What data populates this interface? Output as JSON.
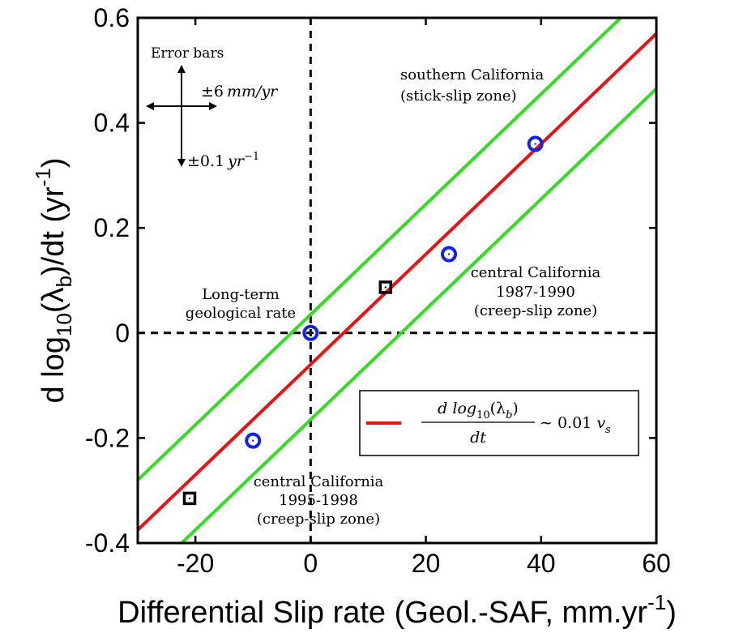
{
  "chart_data": {
    "type": "scatter",
    "xlabel_main": "Differential Slip rate (Geol.-SAF, mm.yr",
    "xlabel_sup": "-1",
    "xlabel_end": ")",
    "ylabel_parts": {
      "a": "d log",
      "sub1": "10",
      "b": "(λ",
      "sub2": "b",
      "c": ")/dt   (yr",
      "sup": "-1",
      "d": ")"
    },
    "xlim": [
      -30,
      60
    ],
    "ylim": [
      -0.4,
      0.6
    ],
    "x_ticks": [
      {
        "value": -20,
        "label": "-20"
      },
      {
        "value": 0,
        "label": "0"
      },
      {
        "value": 20,
        "label": "20"
      },
      {
        "value": 40,
        "label": "40"
      },
      {
        "value": 60,
        "label": "60"
      }
    ],
    "y_ticks": [
      {
        "value": -0.4,
        "label": "-0.4"
      },
      {
        "value": -0.2,
        "label": "-0.2"
      },
      {
        "value": 0,
        "label": "0"
      },
      {
        "value": 0.2,
        "label": "0.2"
      },
      {
        "value": 0.4,
        "label": "0.4"
      },
      {
        "value": 0.6,
        "label": "0.6"
      }
    ],
    "grid": false,
    "reference_lines": [
      {
        "orientation": "vertical",
        "value": 0,
        "style": "dashed",
        "color": "#000000"
      },
      {
        "orientation": "horizontal",
        "value": 0,
        "style": "dashed",
        "color": "#000000"
      }
    ],
    "fit_line": {
      "color": "#ee1111",
      "points": [
        [
          -30,
          -0.375
        ],
        [
          60,
          0.57
        ]
      ]
    },
    "envelope_lines": [
      {
        "color": "#33dd22",
        "points": [
          [
            -30,
            -0.28
          ],
          [
            60,
            0.665
          ]
        ]
      },
      {
        "color": "#33dd22",
        "points": [
          [
            -30,
            -0.48
          ],
          [
            60,
            0.465
          ]
        ]
      }
    ],
    "circle_points": {
      "marker": "circle",
      "color": "#1122ee",
      "points": [
        [
          -10,
          -0.205
        ],
        [
          0,
          0.0
        ],
        [
          24,
          0.15
        ],
        [
          39,
          0.36
        ]
      ]
    },
    "square_points": {
      "marker": "square",
      "color": "#000000",
      "points": [
        [
          -21,
          -0.315
        ],
        [
          13,
          0.087
        ]
      ]
    },
    "legend": {
      "position": "lower-right",
      "text": "d log₁₀(λ_b) / dt ~ 0.01 v_s",
      "math": {
        "num_a": "d log",
        "num_sub": "10",
        "num_b": "(λ",
        "num_sub2": "b",
        "num_c": ")",
        "den": "dt",
        "rhs": "∼ 0.01 ",
        "v": "v",
        "v_sub": "s"
      }
    },
    "error_bars_note": {
      "title": "Error bars",
      "horizontal_value": "±6",
      "horizontal_units": "mm/yr",
      "vertical_value": "±0.1",
      "vertical_unit": "yr",
      "vertical_sup": "−1"
    },
    "annotations": [
      {
        "id": "southern",
        "lines": [
          "southern California",
          "(stick-slip zone)"
        ]
      },
      {
        "id": "central87",
        "lines": [
          "central California",
          "1987-1990",
          "(creep-slip zone)"
        ]
      },
      {
        "id": "longterm",
        "lines": [
          "Long-term",
          "geological rate"
        ]
      },
      {
        "id": "central95",
        "lines": [
          "central California",
          "1995-1998",
          "(creep-slip zone)"
        ]
      }
    ]
  }
}
